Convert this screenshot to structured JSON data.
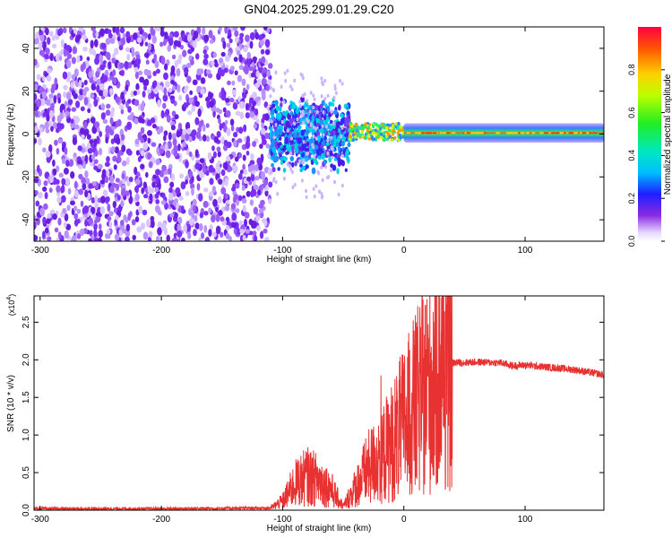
{
  "title": "GN04.2025.299.01.29.C20",
  "chart_data": [
    {
      "type": "heatmap",
      "ylabel": "Frequency (Hz)",
      "xlabel": "Height of straight line (km)",
      "xlim": [
        -305,
        165
      ],
      "ylim": [
        -50,
        50
      ],
      "xticks": [
        -300,
        -200,
        -100,
        0,
        100
      ],
      "xtick_labels": [
        "-300",
        "-200",
        "-100",
        "0",
        "100"
      ],
      "yticks": [
        -40,
        -20,
        0,
        20,
        40
      ],
      "ytick_labels": [
        "-40",
        "-20",
        "0",
        "20",
        "40"
      ],
      "grid": false,
      "colorbar": {
        "label": "Normalized spectral amplitude",
        "range": [
          0,
          1
        ],
        "ticks": [
          0.0,
          0.2,
          0.4,
          0.6,
          0.8
        ],
        "tick_labels": [
          "0.0",
          "0.2",
          "0.4",
          "0.6",
          "0.8"
        ]
      },
      "regions": [
        {
          "x": [
            -305,
            -110
          ],
          "freq_band": [
            -50,
            50
          ],
          "amplitude": 0.1
        },
        {
          "x": [
            -110,
            -45
          ],
          "freq_band": [
            -15,
            15
          ],
          "amplitude": 0.2
        },
        {
          "x": [
            -45,
            0
          ],
          "freq_band": [
            -4,
            6
          ],
          "amplitude": 0.5
        },
        {
          "x": [
            0,
            165
          ],
          "freq_band": [
            -2,
            3
          ],
          "amplitude": 0.8
        }
      ]
    },
    {
      "type": "line",
      "ylabel": "SNR (10 * v/v)",
      "yexponent": "(x10",
      "yexponent_power": "4",
      "xlabel": "Height of straight line (km)",
      "xlim": [
        -305,
        165
      ],
      "ylim": [
        0,
        2.85
      ],
      "xticks": [
        -300,
        -200,
        -100,
        0,
        100
      ],
      "xtick_labels": [
        "-300",
        "-200",
        "-100",
        "0",
        "100"
      ],
      "yticks": [
        0.0,
        0.5,
        1.0,
        1.5,
        2.0,
        2.5
      ],
      "ytick_labels": [
        "0.0",
        "0.5",
        "1.0",
        "1.5",
        "2.0",
        "2.5"
      ],
      "grid": false,
      "color": "#e83232",
      "series": [
        {
          "x": [
            -305,
            -200,
            -110,
            -100,
            -90,
            -80,
            -70,
            -60,
            -50,
            -40,
            -30,
            -20,
            -10,
            0,
            10,
            20,
            30,
            40,
            60,
            80,
            90,
            100,
            120,
            140,
            165
          ],
          "y": [
            0.02,
            0.02,
            0.03,
            0.12,
            0.35,
            0.45,
            0.4,
            0.28,
            0.05,
            0.3,
            0.55,
            0.7,
            0.9,
            1.15,
            1.4,
            1.65,
            1.9,
            1.96,
            1.97,
            1.96,
            1.92,
            1.93,
            1.9,
            1.87,
            1.8
          ]
        }
      ]
    }
  ]
}
